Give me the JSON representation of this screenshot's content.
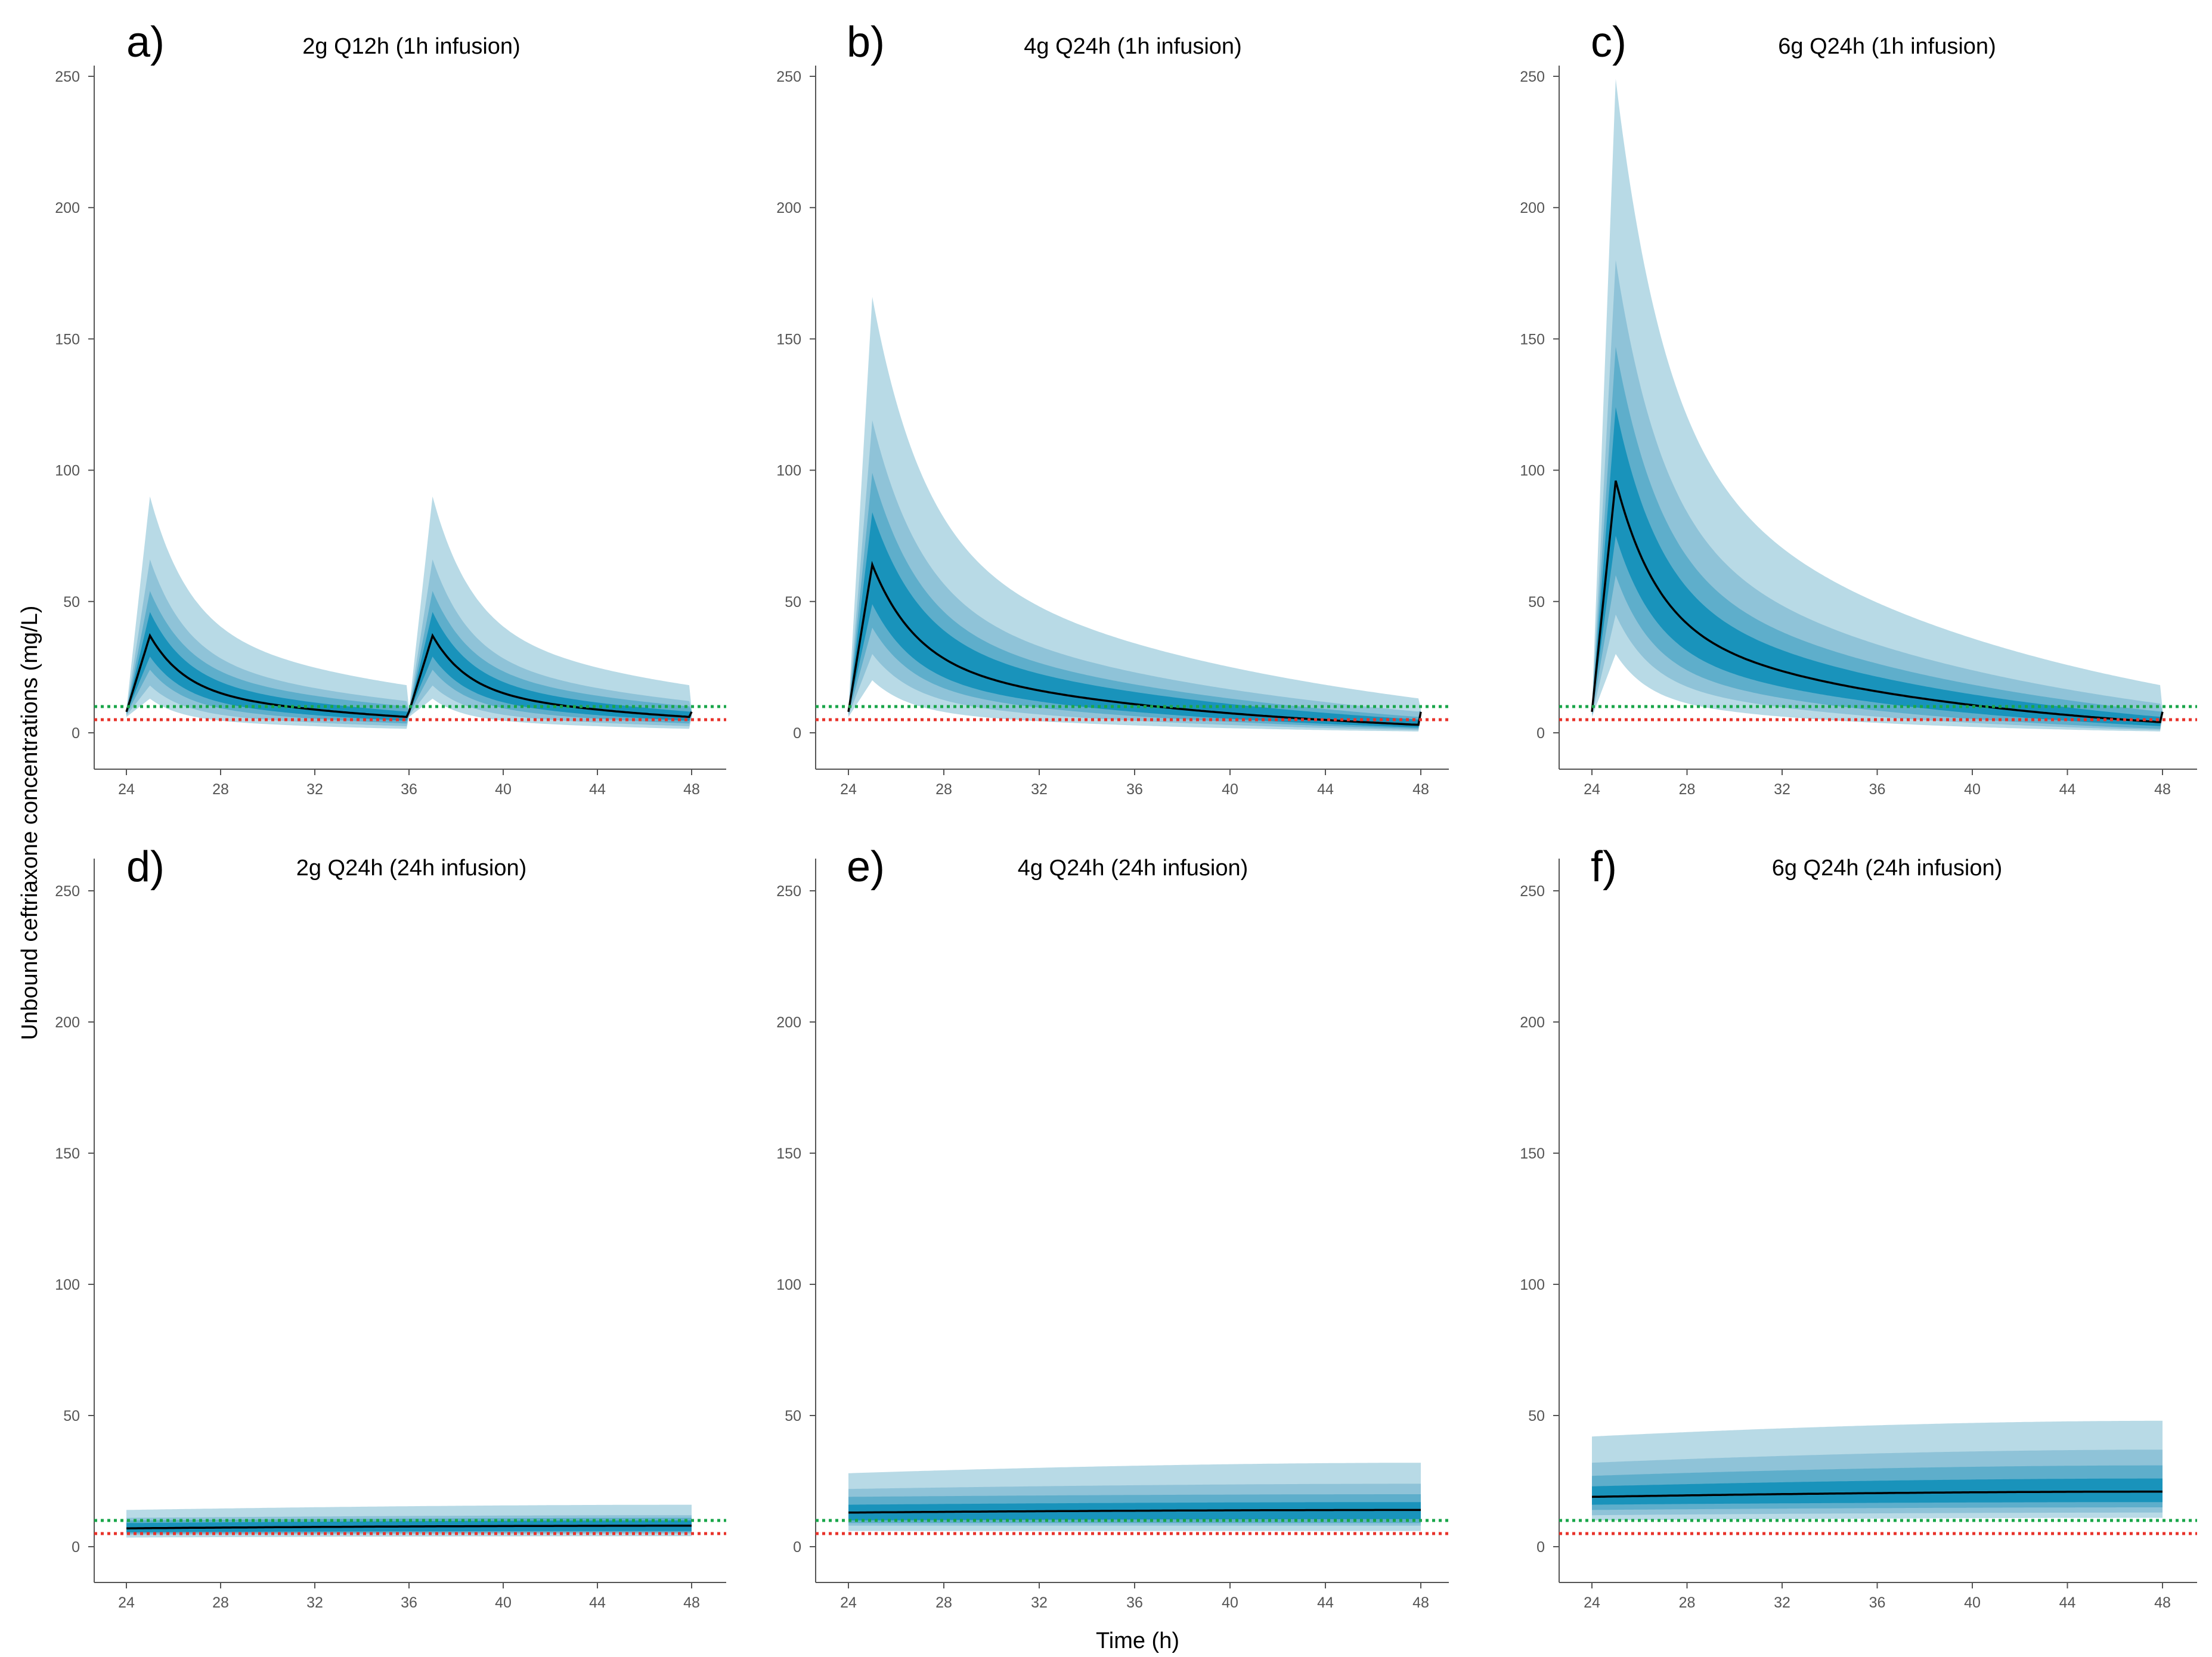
{
  "figure": {
    "ylabel": "Unbound ceftriaxone concentrations (mg/L)",
    "xlabel": "Time (h)"
  },
  "colors": {
    "band_outer": "#b8dae6",
    "band_2": "#8fc3d8",
    "band_3": "#5eaecb",
    "band_inner": "#1993bb",
    "median": "#000000",
    "threshold_green": "#1aa64a",
    "threshold_red": "#e8332b",
    "axis": "#555555"
  },
  "chart_data": [
    {
      "type": "area",
      "panel": "a)",
      "title": "2g Q12h (1h infusion)",
      "regimen": {
        "dose_interval_h": 12,
        "infusion_h": 1
      },
      "xlim": [
        23,
        49
      ],
      "ylim": [
        -12,
        258
      ],
      "xticks": [
        24,
        28,
        32,
        36,
        40,
        44,
        48
      ],
      "yticks": [
        0,
        50,
        100,
        150,
        200,
        250
      ],
      "thresholds": [
        {
          "value": 10,
          "color": "green"
        },
        {
          "value": 5,
          "color": "red"
        }
      ],
      "median": {
        "start": 8,
        "peak": 37,
        "trough": 6
      },
      "bands": [
        {
          "name": "outer",
          "start": 9,
          "peak": 90,
          "trough": 18,
          "low_start": 6,
          "low_peak": 13,
          "low_trough": 1.5
        },
        {
          "name": "middle",
          "start": 8.5,
          "peak": 66,
          "trough": 12,
          "low_start": 6.5,
          "low_peak": 18,
          "low_trough": 2.5
        },
        {
          "name": "inner-mid",
          "start": 8.3,
          "peak": 54,
          "trough": 10,
          "low_start": 7,
          "low_peak": 24,
          "low_trough": 3.5
        },
        {
          "name": "inner",
          "start": 8.1,
          "peak": 46,
          "trough": 8,
          "low_start": 7.5,
          "low_peak": 29,
          "low_trough": 4.5
        }
      ]
    },
    {
      "type": "area",
      "panel": "b)",
      "title": "4g Q24h (1h infusion)",
      "regimen": {
        "dose_interval_h": 24,
        "infusion_h": 1
      },
      "xlim": [
        23,
        49
      ],
      "ylim": [
        -12,
        258
      ],
      "xticks": [
        24,
        28,
        32,
        36,
        40,
        44,
        48
      ],
      "yticks": [
        0,
        50,
        100,
        150,
        200,
        250
      ],
      "thresholds": [
        {
          "value": 10,
          "color": "green"
        },
        {
          "value": 5,
          "color": "red"
        }
      ],
      "median": {
        "start": 8,
        "peak": 64,
        "trough": 3
      },
      "bands": [
        {
          "name": "outer",
          "start": 9,
          "peak": 166,
          "trough": 13,
          "low_start": 6,
          "low_peak": 20,
          "low_trough": 0.5
        },
        {
          "name": "middle",
          "start": 8.5,
          "peak": 119,
          "trough": 8,
          "low_start": 6.5,
          "low_peak": 30,
          "low_trough": 1
        },
        {
          "name": "inner-mid",
          "start": 8.3,
          "peak": 99,
          "trough": 6,
          "low_start": 7,
          "low_peak": 40,
          "low_trough": 1.5
        },
        {
          "name": "inner",
          "start": 8.1,
          "peak": 84,
          "trough": 5,
          "low_start": 7.5,
          "low_peak": 49,
          "low_trough": 2
        }
      ]
    },
    {
      "type": "area",
      "panel": "c)",
      "title": "6g Q24h (1h infusion)",
      "regimen": {
        "dose_interval_h": 24,
        "infusion_h": 1
      },
      "xlim": [
        23,
        49
      ],
      "ylim": [
        -12,
        258
      ],
      "xticks": [
        24,
        28,
        32,
        36,
        40,
        44,
        48
      ],
      "yticks": [
        0,
        50,
        100,
        150,
        200,
        250
      ],
      "thresholds": [
        {
          "value": 10,
          "color": "green"
        },
        {
          "value": 5,
          "color": "red"
        }
      ],
      "median": {
        "start": 8,
        "peak": 96,
        "trough": 4
      },
      "bands": [
        {
          "name": "outer",
          "start": 9,
          "peak": 249,
          "trough": 18,
          "low_start": 6,
          "low_peak": 30,
          "low_trough": 0.5
        },
        {
          "name": "middle",
          "start": 8.5,
          "peak": 180,
          "trough": 11,
          "low_start": 6.5,
          "low_peak": 45,
          "low_trough": 1
        },
        {
          "name": "inner-mid",
          "start": 8.3,
          "peak": 147,
          "trough": 8,
          "low_start": 7,
          "low_peak": 60,
          "low_trough": 1.5
        },
        {
          "name": "inner",
          "start": 8.1,
          "peak": 124,
          "trough": 6,
          "low_start": 7.5,
          "low_peak": 75,
          "low_trough": 2.5
        }
      ]
    },
    {
      "type": "area",
      "panel": "d)",
      "title": "2g Q24h (24h infusion)",
      "regimen": {
        "continuous": true
      },
      "xlim": [
        23,
        49
      ],
      "ylim": [
        -12,
        258
      ],
      "xticks": [
        24,
        28,
        32,
        36,
        40,
        44,
        48
      ],
      "yticks": [
        0,
        50,
        100,
        150,
        200,
        250
      ],
      "thresholds": [
        {
          "value": 10,
          "color": "green"
        },
        {
          "value": 5,
          "color": "red"
        }
      ],
      "median": {
        "start": 7,
        "end": 8
      },
      "bands": [
        {
          "name": "outer",
          "upper_start": 14,
          "upper_end": 16,
          "lower_start": 3.5,
          "lower_end": 4
        },
        {
          "name": "middle",
          "upper_start": 11,
          "upper_end": 12,
          "lower_start": 4.5,
          "lower_end": 5
        },
        {
          "name": "inner-mid",
          "upper_start": 10,
          "upper_end": 11,
          "lower_start": 5,
          "lower_end": 5.5
        },
        {
          "name": "inner",
          "upper_start": 9,
          "upper_end": 10,
          "lower_start": 5.5,
          "lower_end": 6
        }
      ]
    },
    {
      "type": "area",
      "panel": "e)",
      "title": "4g Q24h (24h infusion)",
      "regimen": {
        "continuous": true
      },
      "xlim": [
        23,
        49
      ],
      "ylim": [
        -12,
        258
      ],
      "xticks": [
        24,
        28,
        32,
        36,
        40,
        44,
        48
      ],
      "yticks": [
        0,
        50,
        100,
        150,
        200,
        250
      ],
      "thresholds": [
        {
          "value": 10,
          "color": "green"
        },
        {
          "value": 5,
          "color": "red"
        }
      ],
      "median": {
        "start": 13,
        "end": 14
      },
      "bands": [
        {
          "name": "outer",
          "upper_start": 28,
          "upper_end": 32,
          "lower_start": 6,
          "lower_end": 6
        },
        {
          "name": "middle",
          "upper_start": 22,
          "upper_end": 24,
          "lower_start": 8,
          "lower_end": 8
        },
        {
          "name": "inner-mid",
          "upper_start": 19,
          "upper_end": 20,
          "lower_start": 9,
          "lower_end": 9
        },
        {
          "name": "inner",
          "upper_start": 16,
          "upper_end": 17,
          "lower_start": 10,
          "lower_end": 10.5
        }
      ]
    },
    {
      "type": "area",
      "panel": "f)",
      "title": "6g Q24h (24h infusion)",
      "regimen": {
        "continuous": true
      },
      "xlim": [
        23,
        49
      ],
      "ylim": [
        -12,
        258
      ],
      "xticks": [
        24,
        28,
        32,
        36,
        40,
        44,
        48
      ],
      "yticks": [
        0,
        50,
        100,
        150,
        200,
        250
      ],
      "thresholds": [
        {
          "value": 10,
          "color": "green"
        },
        {
          "value": 5,
          "color": "red"
        }
      ],
      "median": {
        "start": 19,
        "end": 21
      },
      "bands": [
        {
          "name": "outer",
          "upper_start": 42,
          "upper_end": 48,
          "lower_start": 10,
          "lower_end": 11
        },
        {
          "name": "middle",
          "upper_start": 32,
          "upper_end": 37,
          "lower_start": 12,
          "lower_end": 13
        },
        {
          "name": "inner-mid",
          "upper_start": 27,
          "upper_end": 31,
          "lower_start": 14,
          "lower_end": 15
        },
        {
          "name": "inner",
          "upper_start": 23,
          "upper_end": 26,
          "lower_start": 16,
          "lower_end": 17
        }
      ]
    }
  ]
}
